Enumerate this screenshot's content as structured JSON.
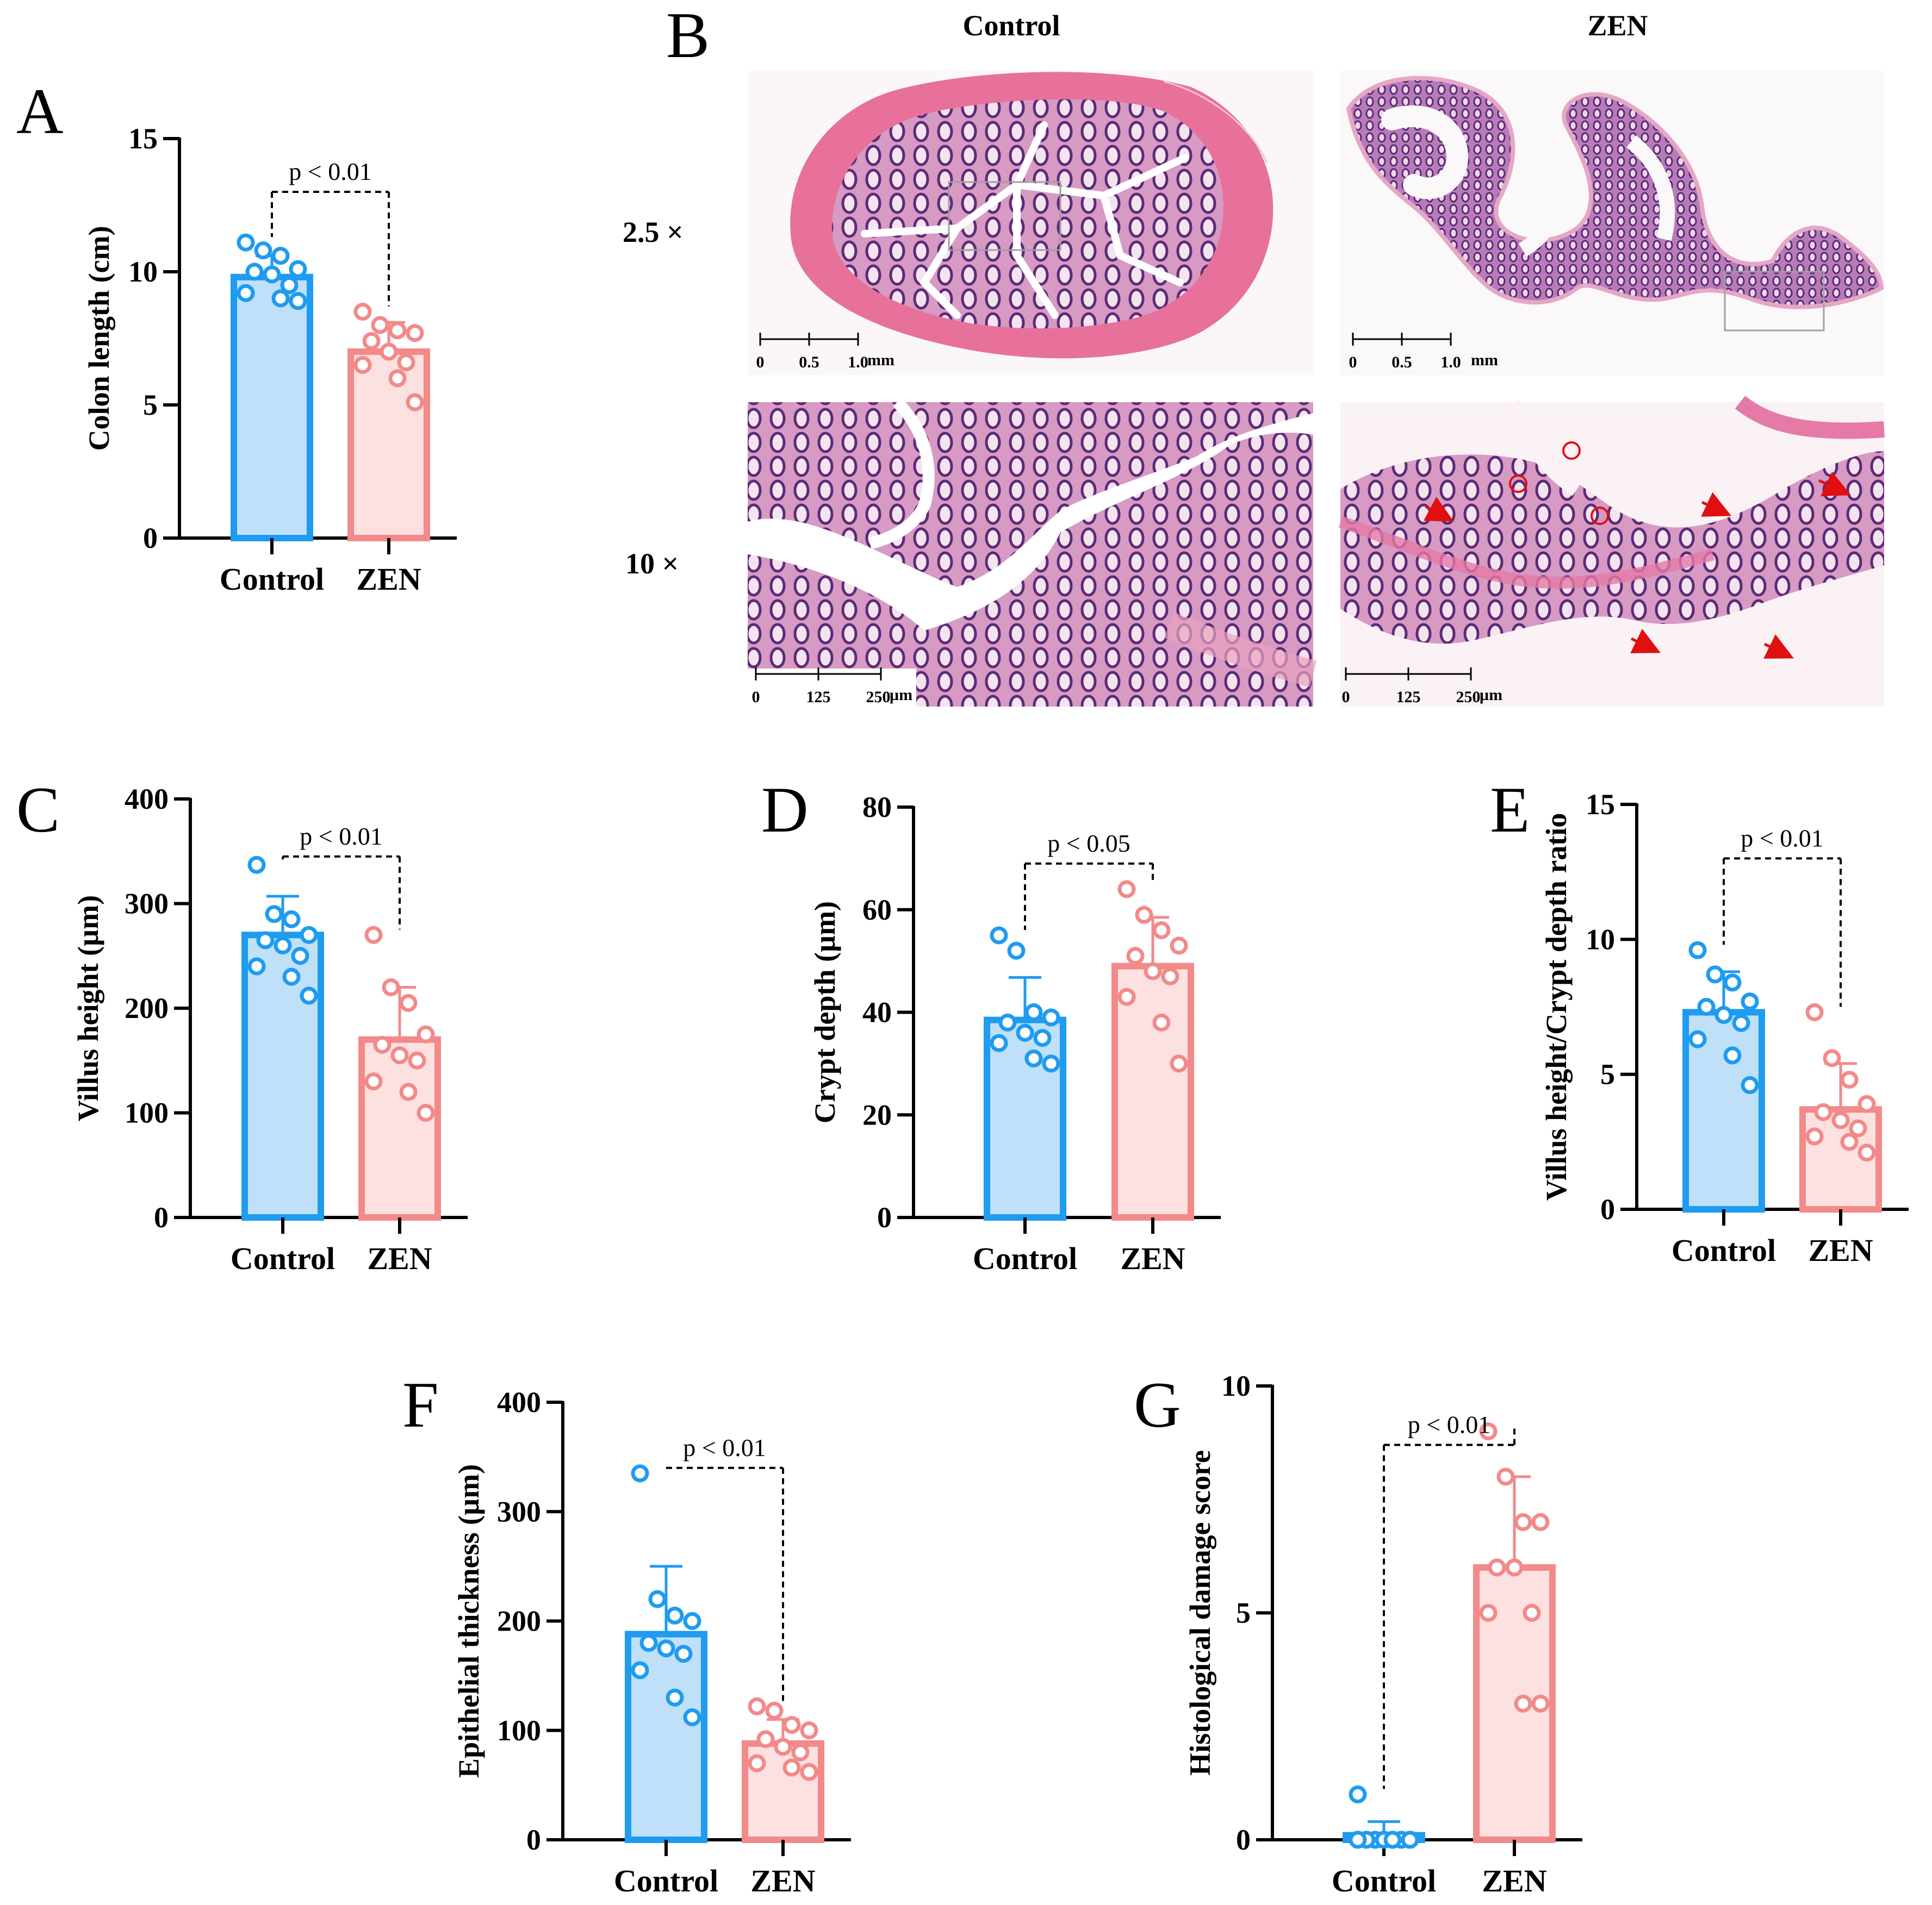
{
  "colors": {
    "control_stroke": "#1f9bf0",
    "control_fill": "#bfe0f8",
    "zen_stroke": "#f28a8a",
    "zen_fill": "#fde0e0",
    "he_pink": "#e98fb4",
    "he_purple": "#7a3f92",
    "he_light": "#f6d6e6"
  },
  "panel_b": {
    "letter": "B",
    "col_control": "Control",
    "col_zen": "ZEN",
    "row_low": "2.5 ×",
    "row_high": "10 ×",
    "scale_low": {
      "ticks": [
        "0",
        "0.5",
        "1.0"
      ],
      "unit": "mm"
    },
    "scale_high": {
      "ticks": [
        "0",
        "125",
        "250"
      ],
      "unit": "µm"
    }
  },
  "chart_data": [
    {
      "id": "A",
      "letter": "A",
      "type": "bar",
      "title": "",
      "ylabel": "Colon length (cm)",
      "categories": [
        "Control",
        "ZEN"
      ],
      "ylim": [
        0,
        15
      ],
      "yticks": [
        0,
        5,
        10,
        15
      ],
      "ytick_labels": [
        "0",
        "5",
        "10",
        "15"
      ],
      "series": [
        {
          "name": "Control",
          "value": 9.8,
          "error": 0.8,
          "points": [
            11.1,
            10.8,
            10.6,
            10.1,
            10.0,
            9.9,
            9.5,
            9.2,
            9.0,
            8.9
          ]
        },
        {
          "name": "ZEN",
          "value": 7.0,
          "error": 1.1,
          "points": [
            8.5,
            8.0,
            7.8,
            7.7,
            7.4,
            7.0,
            6.6,
            6.5,
            6.0,
            5.1
          ]
        }
      ],
      "annotation": {
        "text": "p < 0.01",
        "y": 13.0
      }
    },
    {
      "id": "C",
      "letter": "C",
      "type": "bar",
      "title": "",
      "ylabel": "Villus height (µm)",
      "categories": [
        "Control",
        "ZEN"
      ],
      "ylim": [
        0,
        400
      ],
      "yticks": [
        0,
        100,
        200,
        300,
        400
      ],
      "ytick_labels": [
        "0",
        "100",
        "200",
        "300",
        "400"
      ],
      "series": [
        {
          "name": "Control",
          "value": 270,
          "error": 37,
          "points": [
            337,
            290,
            285,
            270,
            265,
            260,
            250,
            240,
            230,
            212
          ]
        },
        {
          "name": "ZEN",
          "value": 170,
          "error": 50,
          "points": [
            270,
            220,
            205,
            175,
            165,
            155,
            150,
            130,
            120,
            100
          ]
        }
      ],
      "annotation": {
        "text": "p < 0.01",
        "y": 345
      }
    },
    {
      "id": "D",
      "letter": "D",
      "type": "bar",
      "title": "",
      "ylabel": "Crypt depth (µm)",
      "categories": [
        "Control",
        "ZEN"
      ],
      "ylim": [
        0,
        80
      ],
      "yticks": [
        0,
        20,
        40,
        60,
        80
      ],
      "ytick_labels": [
        "0",
        "20",
        "40",
        "60",
        "80"
      ],
      "series": [
        {
          "name": "Control",
          "value": 38.5,
          "error": 8.3,
          "points": [
            55,
            52,
            40,
            39,
            38,
            36,
            35,
            34,
            31,
            30
          ]
        },
        {
          "name": "ZEN",
          "value": 49,
          "error": 9.5,
          "points": [
            64,
            59,
            56,
            53,
            51,
            48,
            47,
            43,
            38,
            30
          ]
        }
      ],
      "annotation": {
        "text": "p < 0.05",
        "y": 69
      }
    },
    {
      "id": "E",
      "letter": "E",
      "type": "bar",
      "title": "",
      "ylabel": "Villus height/Crypt depth ratio",
      "categories": [
        "Control",
        "ZEN"
      ],
      "ylim": [
        0,
        15
      ],
      "yticks": [
        0,
        5,
        10,
        15
      ],
      "ytick_labels": [
        "0",
        "5",
        "10",
        "15"
      ],
      "series": [
        {
          "name": "Control",
          "value": 7.3,
          "error": 1.5,
          "points": [
            9.6,
            8.7,
            8.4,
            7.7,
            7.5,
            7.2,
            6.9,
            6.3,
            5.7,
            4.6
          ]
        },
        {
          "name": "ZEN",
          "value": 3.7,
          "error": 1.7,
          "points": [
            7.3,
            5.6,
            4.8,
            3.9,
            3.6,
            3.3,
            3.0,
            2.7,
            2.5,
            2.1
          ]
        }
      ],
      "annotation": {
        "text": "p < 0.01",
        "y": 13.0
      }
    },
    {
      "id": "F",
      "letter": "F",
      "type": "bar",
      "title": "",
      "ylabel": "Epithelial thickness (µm)",
      "categories": [
        "Control",
        "ZEN"
      ],
      "ylim": [
        0,
        400
      ],
      "yticks": [
        0,
        100,
        200,
        300,
        400
      ],
      "ytick_labels": [
        "0",
        "100",
        "200",
        "300",
        "400"
      ],
      "series": [
        {
          "name": "Control",
          "value": 188,
          "error": 62,
          "points": [
            335,
            220,
            205,
            200,
            180,
            175,
            170,
            155,
            130,
            112
          ]
        },
        {
          "name": "ZEN",
          "value": 88,
          "error": 22,
          "points": [
            122,
            118,
            105,
            100,
            92,
            85,
            80,
            70,
            66,
            62
          ]
        }
      ],
      "annotation": {
        "text": "p < 0.01",
        "y": 340
      }
    },
    {
      "id": "G",
      "letter": "G",
      "type": "bar",
      "title": "",
      "ylabel": "Histological damage score",
      "categories": [
        "Control",
        "ZEN"
      ],
      "ylim": [
        0,
        10
      ],
      "yticks": [
        0,
        5,
        10
      ],
      "ytick_labels": [
        "0",
        "5",
        "10"
      ],
      "series": [
        {
          "name": "Control",
          "value": 0.1,
          "error": 0.3,
          "points": [
            1,
            0,
            0,
            0,
            0,
            0,
            0,
            0,
            0,
            0
          ]
        },
        {
          "name": "ZEN",
          "value": 6.0,
          "error": 2.0,
          "points": [
            9,
            8,
            7,
            7,
            6,
            6,
            5,
            5,
            3,
            3
          ]
        }
      ],
      "annotation": {
        "text": "p < 0.01",
        "y": 8.7
      }
    }
  ]
}
